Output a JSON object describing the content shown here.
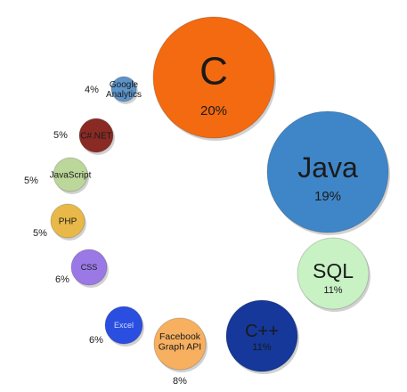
{
  "chart_data": {
    "type": "bubble",
    "title": "",
    "legend": "none",
    "items": [
      {
        "name": "C",
        "pct": "20%",
        "value": 20,
        "color": "#f46a10",
        "text_color": "#1a1a1a"
      },
      {
        "name": "Java",
        "pct": "19%",
        "value": 19,
        "color": "#3f86c9",
        "text_color": "#1a1a1a"
      },
      {
        "name": "SQL",
        "pct": "11%",
        "value": 11,
        "color": "#c8f2c4",
        "text_color": "#1a1a1a"
      },
      {
        "name": "C++",
        "pct": "11%",
        "value": 11,
        "color": "#15389a",
        "text_color": "#1a1a1a"
      },
      {
        "name": "Facebook\nGraph API",
        "pct": "8%",
        "value": 8,
        "color": "#f6b060",
        "text_color": "#1a1a1a"
      },
      {
        "name": "Excel",
        "pct": "6%",
        "value": 6,
        "color": "#2a4fe0",
        "text_color": "#cfd8ff"
      },
      {
        "name": "CSS",
        "pct": "6%",
        "value": 6,
        "color": "#9a79e6",
        "text_color": "#1a1a1a"
      },
      {
        "name": "PHP",
        "pct": "5%",
        "value": 5,
        "color": "#e8b948",
        "text_color": "#1a1a1a"
      },
      {
        "name": "JavaScript",
        "pct": "5%",
        "value": 5,
        "color": "#bcd79a",
        "text_color": "#1a1a1a"
      },
      {
        "name": "C#.NET",
        "pct": "5%",
        "value": 5,
        "color": "#8a2a24",
        "text_color": "#1a1a1a"
      },
      {
        "name": "Google\nAnalytics",
        "pct": "4%",
        "value": 4,
        "color": "#5c93c8",
        "text_color": "#1a1a1a"
      }
    ]
  }
}
